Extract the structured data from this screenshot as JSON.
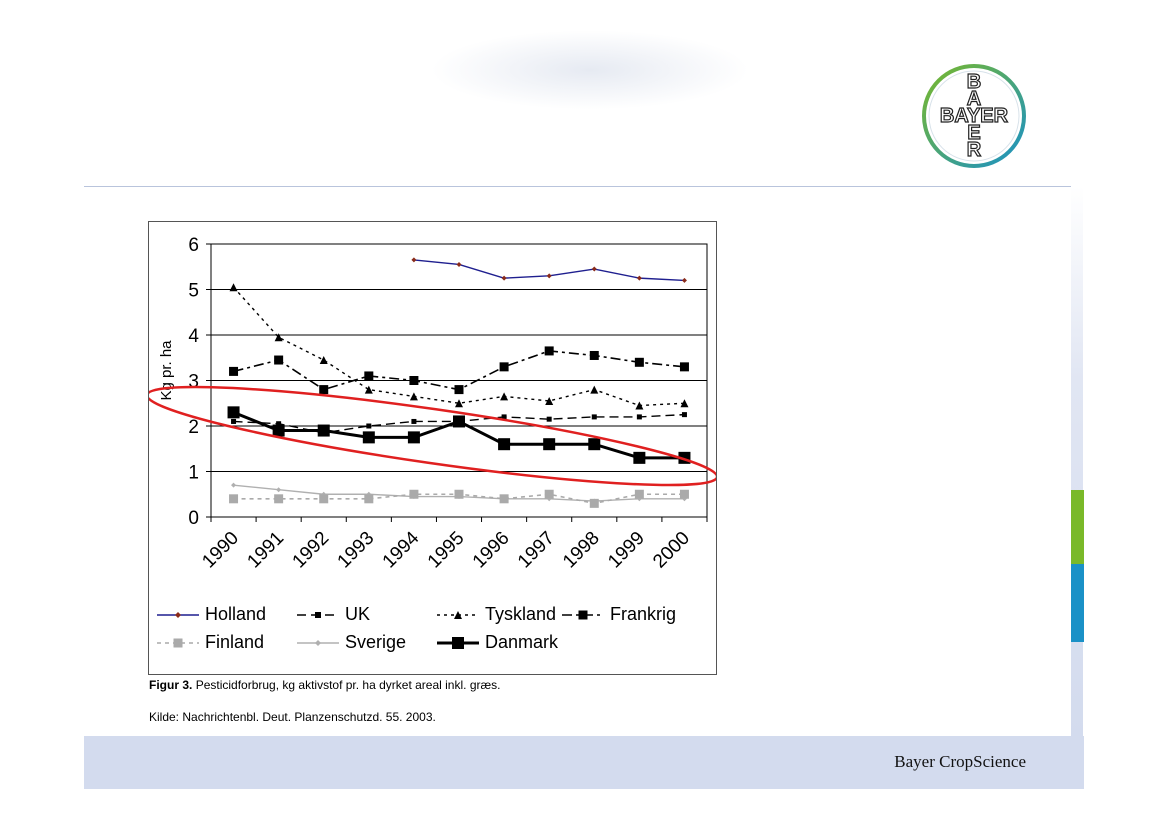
{
  "footer": {
    "company": "Bayer CropScience"
  },
  "logo": {
    "text_vertical": "BAYER",
    "text_horizontal": "BAYER",
    "ring_color_outer": "#7ab929",
    "ring_color_inner": "#1a91c7"
  },
  "figure": {
    "caption_label": "Figur 3.",
    "caption_text": "Pesticidforbrug, kg aktivstof pr. ha dyrket areal inkl. græs.",
    "source": "Kilde: Nachrichtenbl. Deut. Planzenschutzd. 55. 2003."
  },
  "accent_colors": {
    "green": "#7ab929",
    "blue": "#1a91c7",
    "annotation": "#e02020"
  },
  "chart_data": {
    "type": "line",
    "title": "",
    "xlabel": "",
    "ylabel": "Kg pr. ha",
    "ylim": [
      0,
      6
    ],
    "yticks": [
      0,
      1,
      2,
      3,
      4,
      5,
      6
    ],
    "grid": true,
    "legend_placement": "bottom",
    "categories": [
      "1990",
      "1991",
      "1992",
      "1993",
      "1994",
      "1995",
      "1996",
      "1997",
      "1998",
      "1999",
      "2000"
    ],
    "series": [
      {
        "name": "Holland",
        "color": "#1f1f8f",
        "values": [
          null,
          null,
          null,
          null,
          5.65,
          5.55,
          5.25,
          5.3,
          5.45,
          5.25,
          5.2
        ]
      },
      {
        "name": "UK",
        "color": "#000000",
        "values": [
          2.1,
          2.05,
          1.85,
          2.0,
          2.1,
          2.1,
          2.2,
          2.15,
          2.2,
          2.2,
          2.25
        ]
      },
      {
        "name": "Tyskland",
        "color": "#000000",
        "values": [
          5.05,
          3.95,
          3.45,
          2.8,
          2.65,
          2.5,
          2.65,
          2.55,
          2.8,
          2.45,
          2.5
        ]
      },
      {
        "name": "Frankrig",
        "color": "#000000",
        "values": [
          3.2,
          3.45,
          2.8,
          3.1,
          3.0,
          2.8,
          3.3,
          3.65,
          3.55,
          3.4,
          3.3
        ]
      },
      {
        "name": "Finland",
        "color": "#aaaaaa",
        "values": [
          0.4,
          0.4,
          0.4,
          0.4,
          0.5,
          0.5,
          0.4,
          0.5,
          0.3,
          0.5,
          0.5
        ]
      },
      {
        "name": "Sverige",
        "color": "#b0b0b0",
        "values": [
          0.7,
          0.6,
          0.5,
          0.5,
          0.45,
          0.45,
          0.4,
          0.4,
          0.35,
          0.4,
          0.4
        ]
      },
      {
        "name": "Danmark",
        "color": "#000000",
        "values": [
          2.3,
          1.9,
          1.9,
          1.75,
          1.75,
          2.1,
          1.6,
          1.6,
          1.6,
          1.3,
          1.3
        ]
      }
    ]
  }
}
